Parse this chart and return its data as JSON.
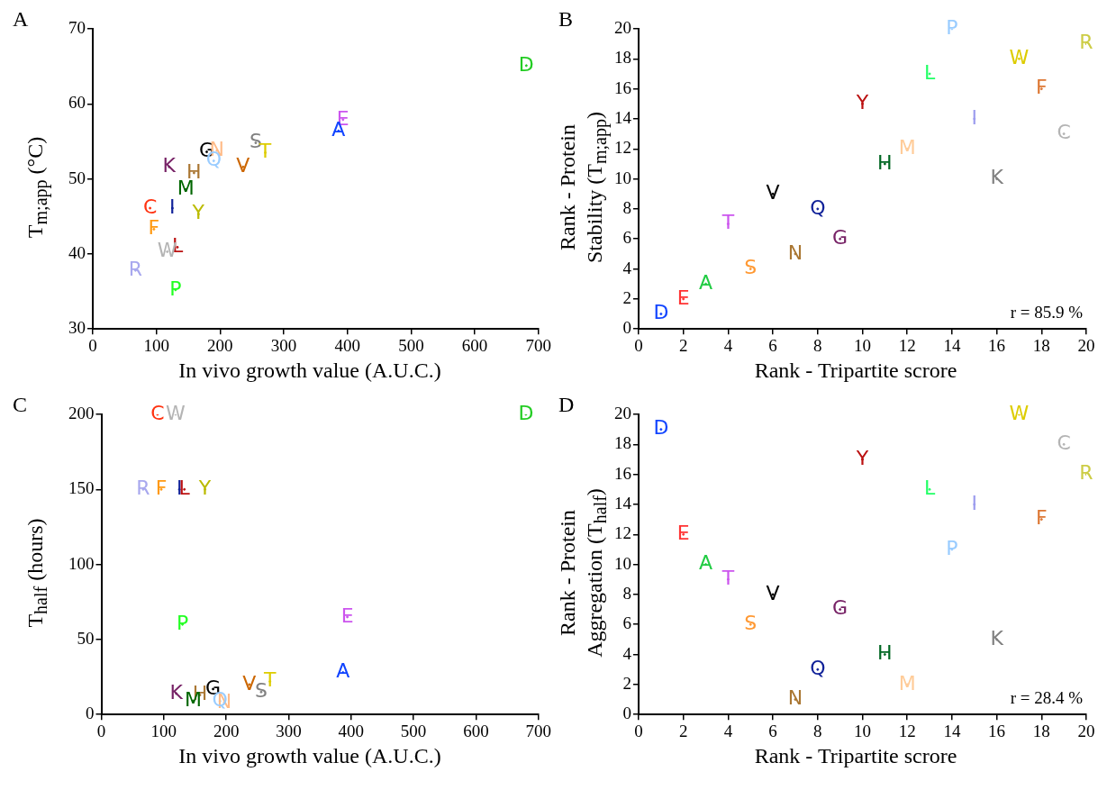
{
  "chart_data": [
    {
      "type": "scatter",
      "title": "A",
      "xlabel": "In vivo growth value (A.U.C.)",
      "ylabel": "T$_{m;app}$ (°C)",
      "xlim": [
        0,
        700
      ],
      "xticks": [
        0,
        100,
        200,
        300,
        400,
        500,
        600,
        700
      ],
      "ylim": [
        30,
        70
      ],
      "yticks": [
        30,
        40,
        50,
        60,
        70
      ],
      "series": [
        {
          "x": [
            681,
            393,
            386,
            256,
            271,
            179,
            195,
            190,
            236,
            120,
            159,
            146,
            90,
            125,
            166,
            96,
            133,
            117,
            67,
            130
          ],
          "values": [
            65.1,
            57.9,
            56.4,
            54.8,
            53.5,
            53.6,
            53.8,
            52.4,
            51.6,
            51.6,
            50.8,
            48.6,
            46.1,
            46.1,
            45.3,
            43.3,
            40.9,
            40.3,
            37.8,
            35.2
          ],
          "value_labels": [
            "D",
            "E",
            "A",
            "S",
            "T",
            "G",
            "N",
            "Q",
            "V",
            "K",
            "H",
            "M",
            "C",
            "I",
            "Y",
            "F",
            "L",
            "W",
            "R",
            "P"
          ],
          "colors": [
            "#22cc22",
            "#cc55ee",
            "#1144ff",
            "#808080",
            "#ddcc00",
            "#000000",
            "#ffbb88",
            "#99ccff",
            "#cc6600",
            "#772266",
            "#aa7733",
            "#006600",
            "#ff3311",
            "#112299",
            "#bbbb00",
            "#ff9911",
            "#bb1111",
            "#b4b4b4",
            "#a8a8ee",
            "#22ff22"
          ]
        }
      ]
    },
    {
      "type": "scatter",
      "title": "B",
      "xlabel": "Rank - Tripartite scrore",
      "ylabel": "Rank - Protein\nStability (T$_{m;app}$)",
      "xlim": [
        0,
        20
      ],
      "xticks": [
        0,
        2,
        4,
        6,
        8,
        10,
        12,
        14,
        16,
        18,
        20
      ],
      "ylim": [
        0,
        20
      ],
      "yticks": [
        0,
        2,
        4,
        6,
        8,
        10,
        12,
        14,
        16,
        18,
        20
      ],
      "annotations": [
        "r = 85.9 %"
      ],
      "series": [
        {
          "x": [
            1,
            2,
            3,
            4,
            5,
            6,
            7,
            8,
            9,
            10,
            11,
            12,
            13,
            14,
            15,
            16,
            17,
            18,
            19,
            20
          ],
          "values": [
            1,
            2,
            3,
            7,
            4,
            9,
            5,
            8,
            6,
            15,
            11,
            12,
            17,
            20,
            14,
            10,
            18,
            16,
            13,
            19
          ],
          "value_labels": [
            "D",
            "E",
            "A",
            "T",
            "S",
            "V",
            "N",
            "Q",
            "G",
            "Y",
            "H",
            "M",
            "L",
            "P",
            "I",
            "K",
            "W",
            "F",
            "C",
            "R"
          ],
          "colors": [
            "#1144ff",
            "#ff3333",
            "#22cc44",
            "#cc55ee",
            "#ff9933",
            "#000000",
            "#aa7733",
            "#112299",
            "#772266",
            "#bb1111",
            "#006622",
            "#ffcc99",
            "#22ff66",
            "#99ccff",
            "#9c9cee",
            "#808080",
            "#ddcc00",
            "#dd7733",
            "#b4b4b4",
            "#cccc44"
          ]
        }
      ]
    },
    {
      "type": "scatter",
      "title": "C",
      "xlabel": "In vivo growth value (A.U.C.)",
      "ylabel": "T$_{half}$ (hours)",
      "xlim": [
        0,
        700
      ],
      "xticks": [
        0,
        100,
        200,
        300,
        400,
        500,
        600,
        700
      ],
      "ylim": [
        0,
        200
      ],
      "yticks": [
        0,
        50,
        100,
        150,
        200
      ],
      "series": [
        {
          "x": [
            680,
            394,
            387,
            256,
            270,
            179,
            197,
            190,
            237,
            120,
            158,
            147,
            90,
            125,
            166,
            96,
            133,
            119,
            67,
            130
          ],
          "values": [
            200,
            65,
            28,
            15,
            22,
            17,
            8,
            9,
            20,
            14,
            13,
            9,
            200,
            150,
            150,
            150,
            150,
            200,
            150,
            60
          ],
          "value_labels": [
            "D",
            "E",
            "A",
            "S",
            "T",
            "G",
            "N",
            "Q",
            "V",
            "K",
            "H",
            "M",
            "C",
            "I",
            "Y",
            "F",
            "L",
            "W",
            "R",
            "P"
          ],
          "colors": [
            "#22cc22",
            "#cc55ee",
            "#1144ff",
            "#808080",
            "#ddcc00",
            "#000000",
            "#ffbb88",
            "#99ccff",
            "#cc6600",
            "#772266",
            "#aa7733",
            "#006600",
            "#ff3311",
            "#112299",
            "#bbbb00",
            "#ff9911",
            "#bb1111",
            "#b4b4b4",
            "#a8a8ee",
            "#22ff22"
          ]
        }
      ]
    },
    {
      "type": "scatter",
      "title": "D",
      "xlabel": "Rank - Tripartite scrore",
      "ylabel": "Rank - Protein\nAggregation (T$_{half}$)",
      "xlim": [
        0,
        20
      ],
      "xticks": [
        0,
        2,
        4,
        6,
        8,
        10,
        12,
        14,
        16,
        18,
        20
      ],
      "ylim": [
        0,
        20
      ],
      "yticks": [
        0,
        2,
        4,
        6,
        8,
        10,
        12,
        14,
        16,
        18,
        20
      ],
      "annotations": [
        "r = 28.4 %"
      ],
      "series": [
        {
          "x": [
            1,
            2,
            3,
            4,
            5,
            6,
            7,
            8,
            9,
            10,
            11,
            12,
            13,
            14,
            15,
            16,
            17,
            18,
            19,
            20
          ],
          "values": [
            19,
            12,
            10,
            9,
            6,
            8,
            1,
            3,
            7,
            17,
            4,
            2,
            15,
            11,
            14,
            5,
            20,
            13,
            18,
            16
          ],
          "value_labels": [
            "D",
            "E",
            "A",
            "T",
            "S",
            "V",
            "N",
            "Q",
            "G",
            "Y",
            "H",
            "M",
            "L",
            "P",
            "I",
            "K",
            "W",
            "F",
            "C",
            "R"
          ],
          "colors": [
            "#1144ff",
            "#ff3333",
            "#22cc44",
            "#cc55ee",
            "#ff9933",
            "#000000",
            "#aa7733",
            "#112299",
            "#772266",
            "#bb1111",
            "#006622",
            "#ffcc99",
            "#22ff66",
            "#99ccff",
            "#9c9cee",
            "#808080",
            "#ddcc00",
            "#dd7733",
            "#b4b4b4",
            "#cccc44"
          ]
        }
      ]
    }
  ]
}
